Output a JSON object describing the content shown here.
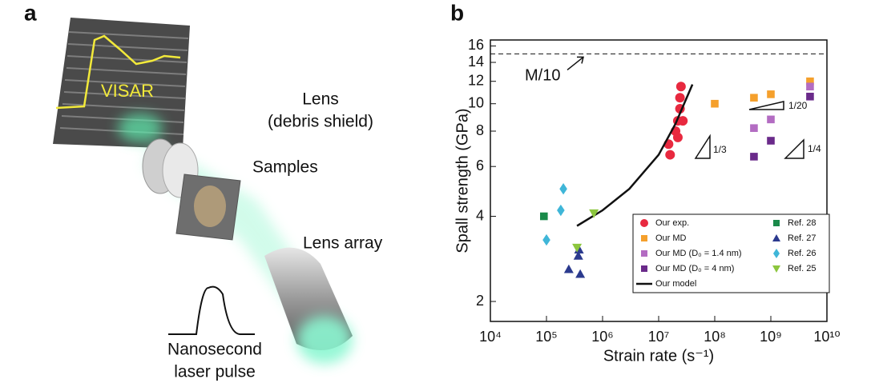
{
  "panel_labels": [
    "a",
    "b"
  ],
  "diagram": {
    "signal_label": "VISAR",
    "lens_label": "Lens",
    "lens_note": "(debris shield)",
    "samples_label": "Samples",
    "lens_array_label": "Lens array",
    "pulse_label_1": "Nanosecond",
    "pulse_label_2": "laser pulse"
  },
  "chart_data": {
    "type": "scatter",
    "x_label": "Strain rate (s⁻¹)",
    "y_label": "Spall strength (GPa)",
    "log_x": true,
    "log_y": true,
    "xlim": [
      10000,
      10000000000
    ],
    "ylim": [
      1.7,
      16.8
    ],
    "xticks": [
      {
        "value": 10000,
        "label": "10⁴"
      },
      {
        "value": 100000,
        "label": "10⁵"
      },
      {
        "value": 1000000,
        "label": "10⁶"
      },
      {
        "value": 10000000,
        "label": "10⁷"
      },
      {
        "value": 100000000,
        "label": "10⁸"
      },
      {
        "value": 1000000000,
        "label": "10⁹"
      },
      {
        "value": 10000000000,
        "label": "10¹⁰"
      }
    ],
    "yticks": [
      2,
      4,
      6,
      8,
      10,
      12,
      14,
      16
    ],
    "reference_line": {
      "value": 15,
      "label": "M/10"
    },
    "annotations": [
      "1/3",
      "1/4",
      "1/20"
    ],
    "legend": "lower right",
    "series": [
      {
        "name": "Our exp.",
        "color": "#e8293f",
        "marker": "circle",
        "x": [
          25000000,
          24000000,
          24000000,
          22000000,
          27000000,
          20000000,
          22000000,
          15000000,
          16000000
        ],
        "values": [
          11.5,
          10.5,
          9.6,
          8.7,
          8.7,
          8.0,
          7.6,
          7.2,
          6.6
        ]
      },
      {
        "name": "Our MD",
        "color": "#f5a02c",
        "marker": "square",
        "x": [
          100000000,
          500000000,
          1000000000,
          5000000000
        ],
        "values": [
          10,
          10.5,
          10.8,
          12
        ]
      },
      {
        "name": "Our MD (D₀ = 1.4 nm)",
        "color": "#b36cc2",
        "marker": "square",
        "x": [
          500000000,
          1000000000,
          5000000000
        ],
        "values": [
          8.2,
          8.8,
          11.5
        ]
      },
      {
        "name": "Our MD (D₀ = 4 nm)",
        "color": "#6a2a8a",
        "marker": "square",
        "x": [
          500000000,
          1000000000,
          5000000000
        ],
        "values": [
          6.5,
          7.4,
          10.6
        ]
      },
      {
        "name": "Our model",
        "color": "#111111",
        "marker": "line",
        "x": [
          350000,
          1000000,
          3000000,
          10000000,
          20000000,
          40000000
        ],
        "values": [
          3.7,
          4.2,
          5.0,
          6.6,
          8.5,
          11.7
        ]
      },
      {
        "name": "Ref. 28",
        "color": "#1a8a4a",
        "marker": "square",
        "x": [
          90000
        ],
        "values": [
          4
        ]
      },
      {
        "name": "Ref. 27",
        "color": "#2b3a8e",
        "marker": "triangle-up",
        "x": [
          250000,
          400000,
          370000,
          380000
        ],
        "values": [
          2.6,
          2.5,
          2.9,
          3.05
        ]
      },
      {
        "name": "Ref. 26",
        "color": "#3fb6d8",
        "marker": "diamond",
        "x": [
          200000,
          180000,
          100000
        ],
        "values": [
          5,
          4.2,
          3.3
        ]
      },
      {
        "name": "Ref. 25",
        "color": "#8cc63e",
        "marker": "triangle-down",
        "x": [
          700000,
          350000
        ],
        "values": [
          4.1,
          3.1
        ]
      }
    ]
  }
}
